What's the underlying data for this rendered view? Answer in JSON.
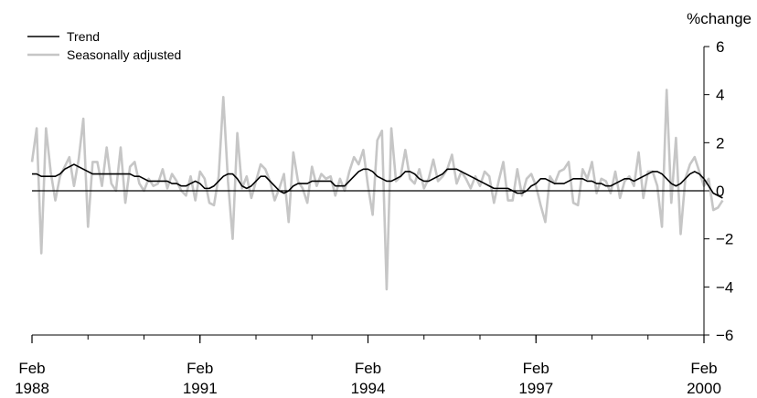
{
  "chart_data": {
    "type": "line",
    "title": "",
    "xlabel": "",
    "ylabel": "%change",
    "ylim": [
      -6,
      6
    ],
    "yticks": [
      6,
      4,
      2,
      0,
      -2,
      -4,
      -6
    ],
    "yticklabels": [
      "6",
      "4",
      "2",
      "0",
      "−2",
      "−4",
      "−6"
    ],
    "xlim": [
      "1988-02",
      "2000-02"
    ],
    "xticks": [
      {
        "date": "1988-02",
        "label1": "Feb",
        "label2": "1988"
      },
      {
        "date": "1991-02",
        "label1": "Feb",
        "label2": "1991"
      },
      {
        "date": "1994-02",
        "label1": "Feb",
        "label2": "1994"
      },
      {
        "date": "1997-02",
        "label1": "Feb",
        "label2": "1997"
      },
      {
        "date": "2000-02",
        "label1": "Feb",
        "label2": "2000"
      }
    ],
    "grid": false,
    "legend_position": "top-left",
    "start": "1988-02",
    "frequency": "monthly",
    "series": [
      {
        "name": "Trend",
        "color": "#000000",
        "values": [
          0.7,
          0.7,
          0.6,
          0.6,
          0.6,
          0.6,
          0.7,
          0.9,
          1.0,
          1.1,
          1.0,
          0.9,
          0.8,
          0.7,
          0.7,
          0.7,
          0.7,
          0.7,
          0.7,
          0.7,
          0.7,
          0.7,
          0.6,
          0.6,
          0.5,
          0.4,
          0.4,
          0.4,
          0.4,
          0.4,
          0.3,
          0.3,
          0.2,
          0.2,
          0.3,
          0.4,
          0.3,
          0.1,
          0.1,
          0.2,
          0.4,
          0.6,
          0.7,
          0.7,
          0.5,
          0.2,
          0.1,
          0.2,
          0.4,
          0.6,
          0.6,
          0.4,
          0.2,
          0.0,
          -0.1,
          0.0,
          0.2,
          0.3,
          0.3,
          0.3,
          0.4,
          0.4,
          0.4,
          0.4,
          0.4,
          0.2,
          0.2,
          0.2,
          0.4,
          0.6,
          0.8,
          0.9,
          0.9,
          0.8,
          0.6,
          0.5,
          0.4,
          0.4,
          0.5,
          0.6,
          0.8,
          0.8,
          0.7,
          0.5,
          0.4,
          0.4,
          0.5,
          0.6,
          0.7,
          0.9,
          0.9,
          0.9,
          0.8,
          0.7,
          0.6,
          0.5,
          0.4,
          0.3,
          0.2,
          0.1,
          0.1,
          0.1,
          0.1,
          0.0,
          -0.1,
          -0.1,
          0.0,
          0.2,
          0.3,
          0.5,
          0.5,
          0.4,
          0.3,
          0.3,
          0.3,
          0.4,
          0.5,
          0.5,
          0.5,
          0.4,
          0.4,
          0.3,
          0.3,
          0.2,
          0.2,
          0.3,
          0.4,
          0.5,
          0.5,
          0.4,
          0.5,
          0.6,
          0.7,
          0.8,
          0.8,
          0.7,
          0.5,
          0.3,
          0.2,
          0.3,
          0.5,
          0.7,
          0.8,
          0.7,
          0.5,
          0.2,
          -0.1,
          -0.2,
          -0.3
        ]
      },
      {
        "name": "Seasonally adjusted",
        "color": "#c6c6c6",
        "values": [
          1.2,
          2.6,
          -2.6,
          2.6,
          0.8,
          -0.4,
          0.6,
          1.0,
          1.4,
          0.2,
          1.3,
          3.0,
          -1.5,
          1.2,
          1.2,
          0.2,
          1.8,
          0.3,
          0.0,
          1.8,
          -0.5,
          1.0,
          1.2,
          0.3,
          0.0,
          0.5,
          0.2,
          0.3,
          0.9,
          0.1,
          0.7,
          0.4,
          0.0,
          -0.2,
          0.6,
          -0.4,
          0.8,
          0.5,
          -0.5,
          -0.6,
          0.6,
          3.9,
          0.4,
          -2.0,
          2.4,
          0.1,
          0.6,
          -0.3,
          0.4,
          1.1,
          0.9,
          0.4,
          -0.4,
          0.1,
          0.7,
          -1.3,
          1.6,
          0.4,
          0.1,
          -0.5,
          1.0,
          0.2,
          0.7,
          0.5,
          0.6,
          -0.2,
          0.5,
          0.0,
          0.8,
          1.4,
          1.1,
          1.7,
          0.2,
          -1.0,
          2.1,
          2.5,
          -4.1,
          2.6,
          0.4,
          0.6,
          1.7,
          0.5,
          0.3,
          0.9,
          0.1,
          0.5,
          1.3,
          0.4,
          0.6,
          0.9,
          1.5,
          0.3,
          0.8,
          0.5,
          0.1,
          0.6,
          0.2,
          0.8,
          0.6,
          -0.5,
          0.4,
          1.2,
          -0.4,
          -0.4,
          0.9,
          -0.2,
          0.5,
          0.7,
          0.2,
          -0.6,
          -1.3,
          0.6,
          0.3,
          0.8,
          0.9,
          1.2,
          -0.5,
          -0.6,
          0.9,
          0.5,
          1.2,
          -0.1,
          0.5,
          0.4,
          -0.1,
          0.8,
          -0.3,
          0.4,
          0.6,
          0.2,
          1.6,
          -0.3,
          0.8,
          0.8,
          0.2,
          -1.5,
          4.2,
          -0.5,
          2.2,
          -1.8,
          0.5,
          1.1,
          1.4,
          0.8,
          0.2,
          0.5,
          -0.8,
          -0.7,
          -0.4
        ]
      }
    ]
  }
}
